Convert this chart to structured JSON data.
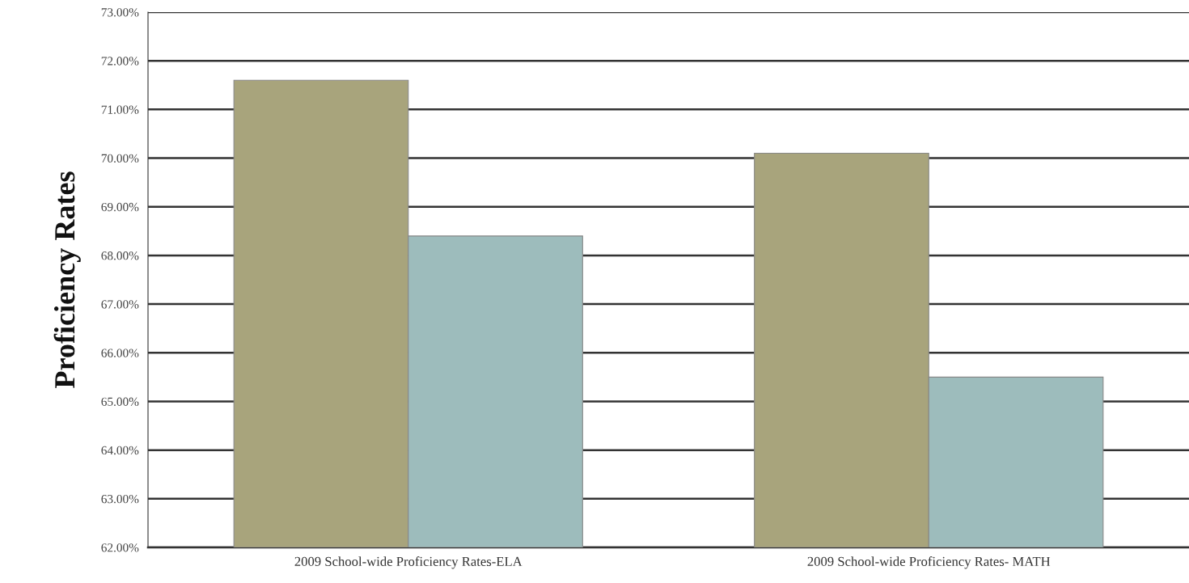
{
  "chart_data": {
    "type": "bar",
    "ylabel": "Proficiency Rates",
    "categories": [
      "2009 School-wide Proficiency Rates-ELA",
      "2009 School-wide Proficiency Rates- MATH"
    ],
    "series": [
      {
        "color": "#a8a47c",
        "values": [
          71.6,
          70.1
        ]
      },
      {
        "color": "#9dbcbc",
        "values": [
          68.4,
          65.5
        ]
      }
    ],
    "ylim": [
      62,
      73
    ],
    "yticks": [
      {
        "value": 62,
        "label": "62.00%"
      },
      {
        "value": 63,
        "label": "63.00%"
      },
      {
        "value": 64,
        "label": "64.00%"
      },
      {
        "value": 65,
        "label": "65.00%"
      },
      {
        "value": 66,
        "label": "66.00%"
      },
      {
        "value": 67,
        "label": "67.00%"
      },
      {
        "value": 68,
        "label": "68.00%"
      },
      {
        "value": 69,
        "label": "69.00%"
      },
      {
        "value": 70,
        "label": "70.00%"
      },
      {
        "value": 71,
        "label": "71.00%"
      },
      {
        "value": 72,
        "label": "72.00%"
      },
      {
        "value": 73,
        "label": "73.00%"
      }
    ],
    "grid": "y"
  }
}
